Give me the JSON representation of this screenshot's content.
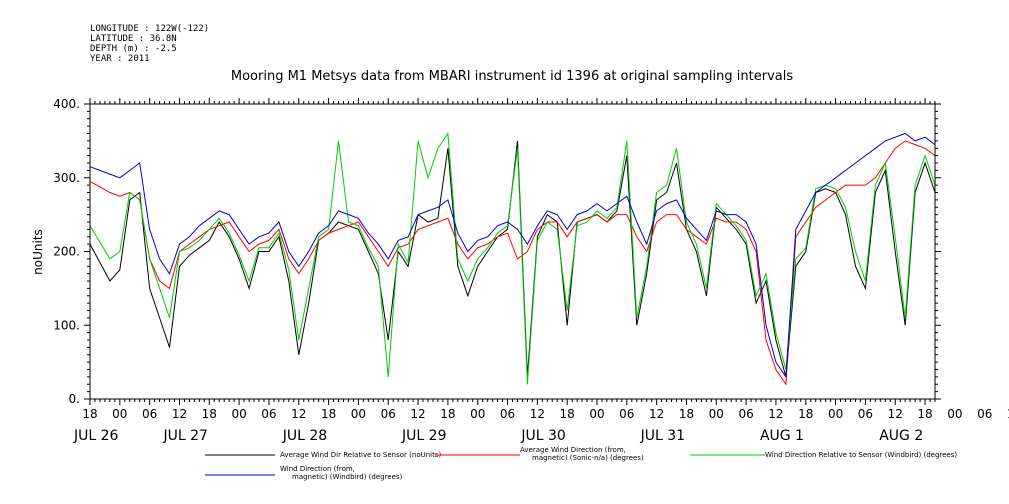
{
  "meta_lines": [
    "LONGITUDE : 122W(-122)",
    "LATITUDE : 36.8N",
    "DEPTH (m) : -2.5",
    "YEAR : 2011"
  ],
  "chart_data": {
    "type": "line",
    "title": "Mooring M1 Metsys data from MBARI instrument id 1396 at original sampling intervals",
    "ylabel": "noUnits",
    "ylim": [
      0,
      400
    ],
    "yticks": [
      "0.",
      "100.",
      "200.",
      "300.",
      "400."
    ],
    "xlim_hours": [
      0,
      170
    ],
    "hour_ticks": [
      "18",
      "00",
      "06",
      "12",
      "18",
      "00",
      "06",
      "12",
      "18",
      "00",
      "06",
      "12",
      "18",
      "00",
      "06",
      "12",
      "18",
      "00",
      "06",
      "12",
      "18",
      "00",
      "06",
      "12",
      "18",
      "00",
      "06",
      "12",
      "18",
      "00",
      "06",
      "12",
      "18"
    ],
    "day_labels": [
      {
        "label": "JUL 26",
        "h": 0
      },
      {
        "label": "JUL 27",
        "h": 18
      },
      {
        "label": "JUL 28",
        "h": 42
      },
      {
        "label": "JUL 29",
        "h": 66
      },
      {
        "label": "JUL 30",
        "h": 90
      },
      {
        "label": "JUL 31",
        "h": 114
      },
      {
        "label": "AUG  1",
        "h": 138
      },
      {
        "label": "AUG  2",
        "h": 162
      }
    ],
    "series": [
      {
        "name": "Average Wind Dir Relative to Sensor (noUnits)",
        "color": "#000000",
        "x": [
          0,
          4,
          6,
          8,
          10,
          12,
          14,
          16,
          18,
          20,
          22,
          24,
          26,
          28,
          30,
          32,
          34,
          36,
          38,
          40,
          42,
          44,
          46,
          48,
          50,
          52,
          54,
          56,
          58,
          60,
          62,
          64,
          66,
          68,
          70,
          72,
          74,
          76,
          78,
          80,
          82,
          84,
          86,
          88,
          90,
          92,
          94,
          96,
          98,
          100,
          102,
          104,
          106,
          108,
          110,
          112,
          114,
          116,
          118,
          120,
          122,
          124,
          126,
          128,
          130,
          132,
          134,
          136,
          138,
          140,
          142,
          144,
          146,
          148,
          150,
          152,
          154,
          156,
          158,
          160,
          162,
          164,
          166,
          168,
          170
        ],
        "y": [
          210,
          160,
          175,
          270,
          280,
          150,
          110,
          70,
          180,
          195,
          205,
          215,
          240,
          220,
          190,
          150,
          200,
          200,
          220,
          160,
          60,
          130,
          215,
          225,
          240,
          235,
          230,
          200,
          170,
          80,
          200,
          180,
          250,
          240,
          245,
          340,
          180,
          140,
          180,
          200,
          220,
          230,
          350,
          30,
          220,
          250,
          240,
          100,
          240,
          245,
          250,
          240,
          255,
          330,
          100,
          170,
          270,
          280,
          320,
          230,
          200,
          140,
          260,
          245,
          230,
          210,
          130,
          160,
          80,
          30,
          180,
          200,
          280,
          285,
          280,
          250,
          180,
          150,
          280,
          310,
          200,
          100,
          280,
          320,
          280
        ]
      },
      {
        "name": "Average Wind Direction (from, magnetic) (Sonic-n/a) (degrees)",
        "color": "#ff0000",
        "x": [
          0,
          4,
          6,
          8,
          10,
          12,
          14,
          16,
          18,
          20,
          22,
          24,
          26,
          28,
          30,
          32,
          34,
          36,
          38,
          40,
          42,
          44,
          46,
          48,
          50,
          52,
          54,
          56,
          58,
          60,
          62,
          64,
          66,
          68,
          70,
          72,
          74,
          76,
          78,
          80,
          82,
          84,
          86,
          88,
          90,
          92,
          94,
          96,
          98,
          100,
          102,
          104,
          106,
          108,
          110,
          112,
          114,
          116,
          118,
          120,
          122,
          124,
          126,
          128,
          130,
          132,
          134,
          136,
          138,
          140,
          142,
          144,
          146,
          148,
          150,
          152,
          154,
          156,
          158,
          160,
          162,
          164,
          166,
          168,
          170
        ],
        "y": [
          295,
          280,
          275,
          280,
          270,
          190,
          160,
          150,
          200,
          210,
          220,
          230,
          235,
          240,
          220,
          200,
          210,
          215,
          230,
          190,
          170,
          190,
          215,
          225,
          230,
          235,
          240,
          220,
          200,
          180,
          205,
          210,
          230,
          235,
          240,
          245,
          210,
          190,
          205,
          210,
          220,
          225,
          190,
          200,
          230,
          240,
          240,
          220,
          240,
          245,
          250,
          240,
          250,
          250,
          220,
          200,
          240,
          250,
          250,
          230,
          220,
          210,
          245,
          240,
          240,
          230,
          200,
          80,
          40,
          20,
          220,
          240,
          260,
          270,
          280,
          290,
          290,
          290,
          300,
          320,
          340,
          350,
          345,
          340,
          330
        ]
      },
      {
        "name": "Wind Direction Relative to Sensor (Windbird) (degrees)",
        "color": "#00cc00",
        "x": [
          0,
          4,
          6,
          8,
          10,
          12,
          14,
          16,
          18,
          20,
          22,
          24,
          26,
          28,
          30,
          32,
          34,
          36,
          38,
          40,
          42,
          44,
          46,
          48,
          50,
          52,
          54,
          56,
          58,
          60,
          62,
          64,
          66,
          68,
          70,
          72,
          74,
          76,
          78,
          80,
          82,
          84,
          86,
          88,
          90,
          92,
          94,
          96,
          98,
          100,
          102,
          104,
          106,
          108,
          110,
          112,
          114,
          116,
          118,
          120,
          122,
          124,
          126,
          128,
          130,
          132,
          134,
          136,
          138,
          140,
          142,
          144,
          146,
          148,
          150,
          152,
          154,
          156,
          158,
          160,
          162,
          164,
          166,
          168,
          170
        ],
        "y": [
          235,
          190,
          200,
          280,
          270,
          190,
          150,
          110,
          200,
          205,
          215,
          230,
          245,
          225,
          195,
          160,
          205,
          205,
          225,
          175,
          80,
          150,
          220,
          230,
          350,
          240,
          235,
          205,
          180,
          30,
          210,
          185,
          350,
          300,
          340,
          360,
          190,
          160,
          190,
          205,
          225,
          235,
          340,
          20,
          215,
          240,
          230,
          120,
          235,
          240,
          255,
          245,
          260,
          350,
          110,
          180,
          280,
          290,
          340,
          240,
          210,
          150,
          265,
          250,
          235,
          215,
          140,
          170,
          90,
          40,
          190,
          205,
          285,
          290,
          285,
          260,
          200,
          160,
          290,
          320,
          220,
          110,
          290,
          330,
          290
        ]
      },
      {
        "name": "Wind Direction (from, magnetic) (Windbird) (degrees)",
        "color": "#0000cc",
        "x": [
          0,
          4,
          6,
          8,
          10,
          12,
          14,
          16,
          18,
          20,
          22,
          24,
          26,
          28,
          30,
          32,
          34,
          36,
          38,
          40,
          42,
          44,
          46,
          48,
          50,
          52,
          54,
          56,
          58,
          60,
          62,
          64,
          66,
          68,
          70,
          72,
          74,
          76,
          78,
          80,
          82,
          84,
          86,
          88,
          90,
          92,
          94,
          96,
          98,
          100,
          102,
          104,
          106,
          108,
          110,
          112,
          114,
          116,
          118,
          120,
          122,
          124,
          126,
          128,
          130,
          132,
          134,
          136,
          138,
          140,
          142,
          144,
          146,
          148,
          150,
          152,
          154,
          156,
          158,
          160,
          162,
          164,
          166,
          168,
          170
        ],
        "y": [
          315,
          305,
          300,
          310,
          320,
          230,
          190,
          170,
          210,
          220,
          235,
          245,
          255,
          250,
          230,
          210,
          220,
          225,
          240,
          200,
          180,
          200,
          225,
          235,
          255,
          250,
          245,
          225,
          210,
          190,
          215,
          220,
          250,
          255,
          260,
          270,
          225,
          200,
          215,
          220,
          235,
          240,
          230,
          210,
          235,
          255,
          250,
          230,
          250,
          255,
          265,
          255,
          265,
          275,
          240,
          210,
          255,
          265,
          270,
          245,
          230,
          215,
          255,
          250,
          250,
          240,
          210,
          100,
          50,
          30,
          230,
          255,
          280,
          290,
          300,
          310,
          320,
          330,
          340,
          350,
          355,
          360,
          350,
          355,
          345
        ]
      }
    ],
    "legend_placement": "bottom"
  }
}
